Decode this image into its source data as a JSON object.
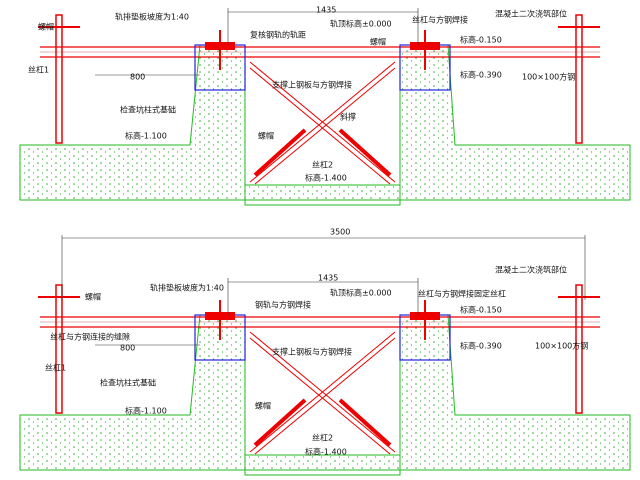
{
  "top": {
    "labels": [
      "螺帽",
      "轨排垫板坡度为1:40",
      "1435",
      "轨顶标高±0.000",
      "丝杠与方钢焊接",
      "混凝土二次浇筑部位",
      "复核钢轨的轨距",
      "螺帽",
      "标高-0.150",
      "丝杠1",
      "800",
      "标高-0.390",
      "100×100方钢",
      "支撑上钢板与方钢焊接",
      "检查坑柱式基础",
      "螺帽",
      "斜撑",
      "标高-1.100",
      "丝杠2",
      "标高-1.400"
    ]
  },
  "bottom": {
    "labels": [
      "3500",
      "1435",
      "混凝土二次浇筑部位",
      "螺帽",
      "轨排垫板坡度为1:40",
      "轨顶标高±0.000",
      "丝杠与方钢焊接固定丝杠",
      "钢轨与方钢焊接",
      "标高-0.150",
      "丝杠与方钢连接的缝隙",
      "800",
      "标高-0.390",
      "100×100方钢",
      "支撑上钢板与方钢焊接",
      "丝杠1",
      "检查坑柱式基础",
      "螺帽",
      "标高-1.100",
      "丝杠2",
      "标高-1.400"
    ]
  }
}
